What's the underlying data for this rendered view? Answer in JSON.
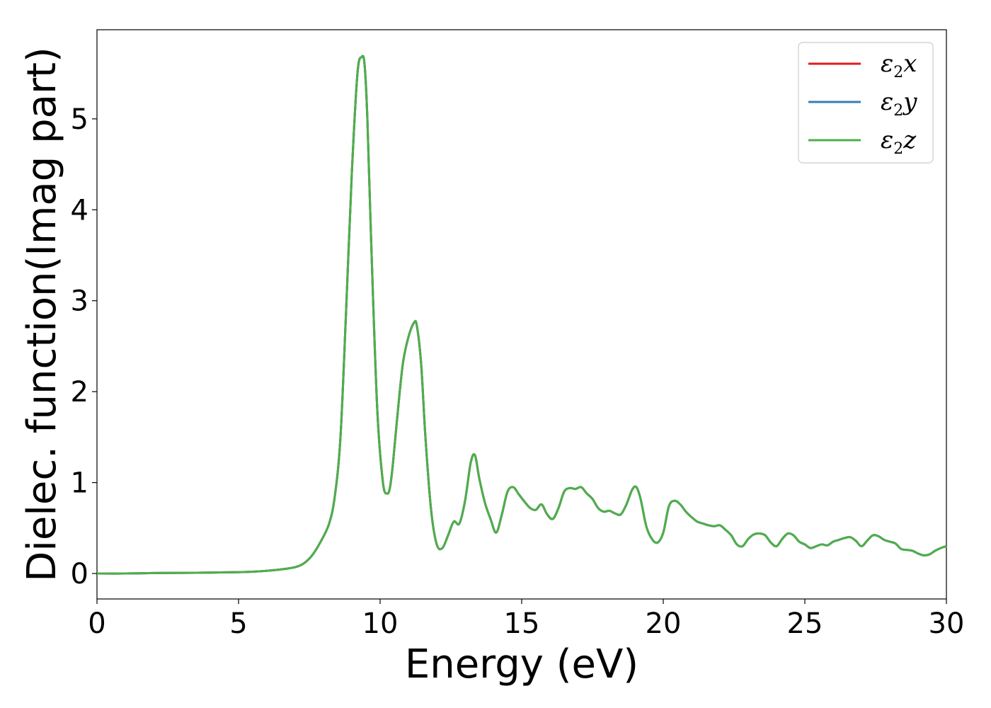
{
  "chart_data": {
    "type": "line",
    "xlabel": "Energy (eV)",
    "ylabel": "Dielec. function(Imag part)",
    "xlim": [
      0,
      30
    ],
    "ylim": [
      -0.28,
      5.98
    ],
    "xticks": [
      "0",
      "5",
      "10",
      "15",
      "20",
      "25",
      "30"
    ],
    "yticks": [
      "0",
      "1",
      "2",
      "3",
      "4",
      "5"
    ],
    "grid": false,
    "legend_position": "top-right",
    "legend": [
      {
        "sym": "ε",
        "sub": "2",
        "var": "x",
        "color": "#e41a1c"
      },
      {
        "sym": "ε",
        "sub": "2",
        "var": "y",
        "color": "#377eb8"
      },
      {
        "sym": "ε",
        "sub": "2",
        "var": "z",
        "color": "#4daf4a"
      }
    ],
    "x": [
      0,
      1,
      2,
      3,
      4,
      5,
      5.5,
      6,
      6.5,
      7,
      7.3,
      7.6,
      7.9,
      8.2,
      8.4,
      8.6,
      8.8,
      9.0,
      9.2,
      9.35,
      9.45,
      9.55,
      9.7,
      9.9,
      10.1,
      10.25,
      10.35,
      10.45,
      10.6,
      10.8,
      11.0,
      11.2,
      11.3,
      11.45,
      11.6,
      11.8,
      12.0,
      12.2,
      12.4,
      12.6,
      12.8,
      13.0,
      13.2,
      13.35,
      13.5,
      13.7,
      13.9,
      14.1,
      14.3,
      14.5,
      14.7,
      14.9,
      15.1,
      15.3,
      15.5,
      15.7,
      15.9,
      16.1,
      16.3,
      16.5,
      16.7,
      16.9,
      17.1,
      17.3,
      17.5,
      17.7,
      17.9,
      18.1,
      18.3,
      18.5,
      18.7,
      18.9,
      19.05,
      19.2,
      19.4,
      19.6,
      19.8,
      20.0,
      20.2,
      20.4,
      20.6,
      20.8,
      21.0,
      21.2,
      21.4,
      21.6,
      21.8,
      22.0,
      22.2,
      22.4,
      22.6,
      22.8,
      23.0,
      23.2,
      23.4,
      23.6,
      23.8,
      24.0,
      24.2,
      24.4,
      24.6,
      24.8,
      25.0,
      25.2,
      25.4,
      25.6,
      25.8,
      26.0,
      26.2,
      26.4,
      26.6,
      26.8,
      27.0,
      27.2,
      27.4,
      27.6,
      27.8,
      28.0,
      28.2,
      28.4,
      28.6,
      28.8,
      29.0,
      29.2,
      29.4,
      29.6,
      29.8,
      30.0
    ],
    "series": [
      {
        "values": [
          0.0,
          0.0,
          0.005,
          0.007,
          0.01,
          0.015,
          0.02,
          0.03,
          0.045,
          0.07,
          0.11,
          0.2,
          0.35,
          0.55,
          0.85,
          1.5,
          2.9,
          4.4,
          5.5,
          5.68,
          5.6,
          5.0,
          3.5,
          1.8,
          1.0,
          0.88,
          0.95,
          1.2,
          1.7,
          2.3,
          2.6,
          2.76,
          2.72,
          2.3,
          1.5,
          0.7,
          0.32,
          0.28,
          0.42,
          0.57,
          0.55,
          0.8,
          1.22,
          1.3,
          1.05,
          0.78,
          0.6,
          0.45,
          0.65,
          0.9,
          0.95,
          0.87,
          0.79,
          0.72,
          0.7,
          0.76,
          0.65,
          0.6,
          0.72,
          0.9,
          0.94,
          0.93,
          0.95,
          0.88,
          0.82,
          0.72,
          0.68,
          0.69,
          0.66,
          0.65,
          0.76,
          0.92,
          0.95,
          0.82,
          0.52,
          0.38,
          0.34,
          0.45,
          0.74,
          0.8,
          0.76,
          0.68,
          0.62,
          0.57,
          0.55,
          0.53,
          0.52,
          0.53,
          0.48,
          0.42,
          0.32,
          0.3,
          0.38,
          0.43,
          0.44,
          0.42,
          0.34,
          0.3,
          0.38,
          0.44,
          0.42,
          0.35,
          0.32,
          0.28,
          0.3,
          0.32,
          0.31,
          0.35,
          0.37,
          0.39,
          0.4,
          0.36,
          0.3,
          0.36,
          0.42,
          0.41,
          0.37,
          0.35,
          0.33,
          0.27,
          0.26,
          0.25,
          0.22,
          0.2,
          0.21,
          0.25,
          0.28,
          0.3
        ]
      }
    ]
  }
}
